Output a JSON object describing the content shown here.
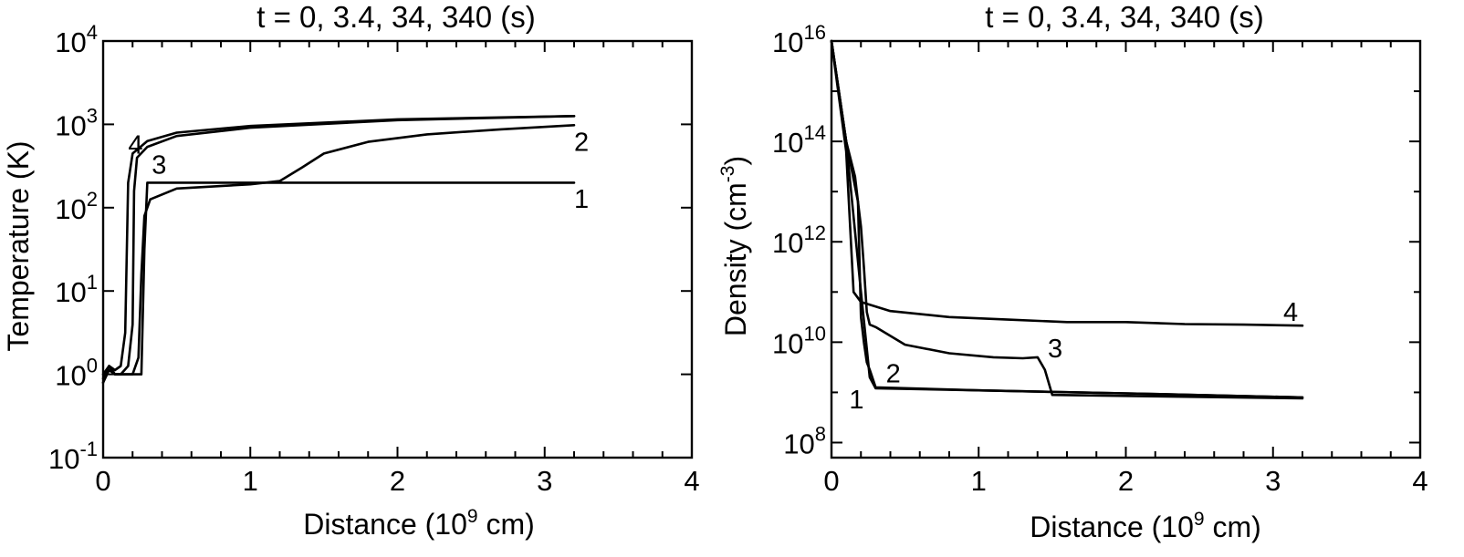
{
  "chart_data": [
    {
      "type": "line",
      "title": "t = 0, 3.4, 34, 340 (s)",
      "xlabel_main": "Distance (10",
      "xlabel_sup": "9",
      "xlabel_tail": " cm)",
      "ylabel": "Temperature (K)",
      "xlim": [
        0,
        4
      ],
      "ylim_log10": [
        -1,
        4
      ],
      "yscale": "log",
      "xticks": [
        "0",
        "1",
        "2",
        "3",
        "4"
      ],
      "yticks": [
        {
          "base": "10",
          "exp": "-1",
          "log": -1
        },
        {
          "base": "10",
          "exp": "0",
          "log": 0
        },
        {
          "base": "10",
          "exp": "1",
          "log": 1
        },
        {
          "base": "10",
          "exp": "2",
          "log": 2
        },
        {
          "base": "10",
          "exp": "3",
          "log": 3
        },
        {
          "base": "10",
          "exp": "4",
          "log": 4
        }
      ],
      "series": [
        {
          "label": "1",
          "label_at": [
            3.25,
            2.12
          ],
          "x": [
            0.0,
            0.04,
            0.08,
            0.12,
            0.2,
            0.26,
            0.28,
            0.3,
            1.0,
            2.0,
            3.2
          ],
          "y_log10": [
            0.0,
            0.1,
            0.0,
            0.0,
            0.0,
            0.0,
            1.5,
            2.3,
            2.3,
            2.3,
            2.3
          ]
        },
        {
          "label": "2",
          "label_at": [
            3.25,
            2.8
          ],
          "x": [
            0.0,
            0.04,
            0.08,
            0.2,
            0.24,
            0.26,
            0.28,
            0.32,
            0.5,
            1.0,
            1.2,
            1.35,
            1.5,
            1.8,
            2.2,
            2.7,
            3.2
          ],
          "y_log10": [
            -0.1,
            0.05,
            0.0,
            0.0,
            0.2,
            1.2,
            1.9,
            2.1,
            2.23,
            2.28,
            2.32,
            2.48,
            2.65,
            2.79,
            2.88,
            2.94,
            2.99
          ]
        },
        {
          "label": "3",
          "label_at": [
            0.38,
            2.53
          ],
          "x": [
            0.0,
            0.04,
            0.08,
            0.12,
            0.17,
            0.2,
            0.21,
            0.23,
            0.3,
            0.5,
            1.0,
            2.0,
            3.2
          ],
          "y_log10": [
            -0.05,
            0.1,
            0.0,
            0.0,
            0.1,
            0.6,
            2.2,
            2.6,
            2.73,
            2.86,
            2.96,
            3.05,
            3.1
          ]
        },
        {
          "label": "4",
          "label_at": [
            0.22,
            2.77
          ],
          "x": [
            0.0,
            0.04,
            0.08,
            0.12,
            0.15,
            0.17,
            0.2,
            0.3,
            0.5,
            1.0,
            2.0,
            3.2
          ],
          "y_log10": [
            -0.1,
            0.1,
            0.05,
            0.1,
            0.5,
            2.3,
            2.65,
            2.8,
            2.9,
            2.98,
            3.06,
            3.1
          ]
        }
      ]
    },
    {
      "type": "line",
      "title": "t = 0, 3.4, 34, 340 (s)",
      "xlabel_main": "Distance (10",
      "xlabel_sup": "9",
      "xlabel_tail": " cm)",
      "ylabel_main": "Density (cm",
      "ylabel_sup": "-3",
      "ylabel_tail": ")",
      "xlim": [
        0,
        4
      ],
      "ylim_log10": [
        7.7,
        16.0
      ],
      "yscale": "log",
      "xticks": [
        "0",
        "1",
        "2",
        "3",
        "4"
      ],
      "yticks": [
        {
          "base": "10",
          "exp": "8",
          "log": 8
        },
        {
          "base": "10",
          "exp": "10",
          "log": 10
        },
        {
          "base": "10",
          "exp": "12",
          "log": 12
        },
        {
          "base": "10",
          "exp": "14",
          "log": 14
        },
        {
          "base": "10",
          "exp": "16",
          "log": 16
        }
      ],
      "series": [
        {
          "label": "1",
          "label_at": [
            0.17,
            8.88
          ],
          "x": [
            0.0,
            0.1,
            0.2,
            0.26,
            0.3,
            1.0,
            2.0,
            3.2
          ],
          "y_log10": [
            16.0,
            14.0,
            11.0,
            9.3,
            9.08,
            9.04,
            8.98,
            8.9
          ]
        },
        {
          "label": "2",
          "label_at": [
            0.42,
            9.4
          ],
          "x": [
            0.0,
            0.1,
            0.16,
            0.18,
            0.2,
            0.22,
            0.24,
            0.26,
            0.3,
            1.0,
            2.0,
            3.2
          ],
          "y_log10": [
            16.0,
            14.0,
            13.3,
            12.8,
            10.5,
            10.0,
            9.6,
            9.45,
            9.1,
            9.04,
            8.98,
            8.9
          ]
        },
        {
          "label": "3",
          "label_at": [
            1.52,
            9.9
          ],
          "x": [
            0.0,
            0.1,
            0.18,
            0.2,
            0.22,
            0.24,
            0.26,
            0.3,
            0.5,
            0.8,
            1.1,
            1.3,
            1.4,
            1.45,
            1.5,
            2.0,
            3.2
          ],
          "y_log10": [
            16.0,
            14.0,
            12.8,
            12.3,
            11.5,
            10.6,
            10.35,
            10.3,
            9.95,
            9.78,
            9.7,
            9.68,
            9.7,
            9.45,
            8.95,
            8.93,
            8.88
          ]
        },
        {
          "label": "4",
          "label_at": [
            3.12,
            10.62
          ],
          "x": [
            0.0,
            0.1,
            0.15,
            0.2,
            0.4,
            0.8,
            1.2,
            1.6,
            2.0,
            2.4,
            2.8,
            3.2
          ],
          "y_log10": [
            16.0,
            13.8,
            11.0,
            10.8,
            10.62,
            10.5,
            10.45,
            10.4,
            10.4,
            10.36,
            10.35,
            10.33
          ]
        }
      ]
    }
  ]
}
